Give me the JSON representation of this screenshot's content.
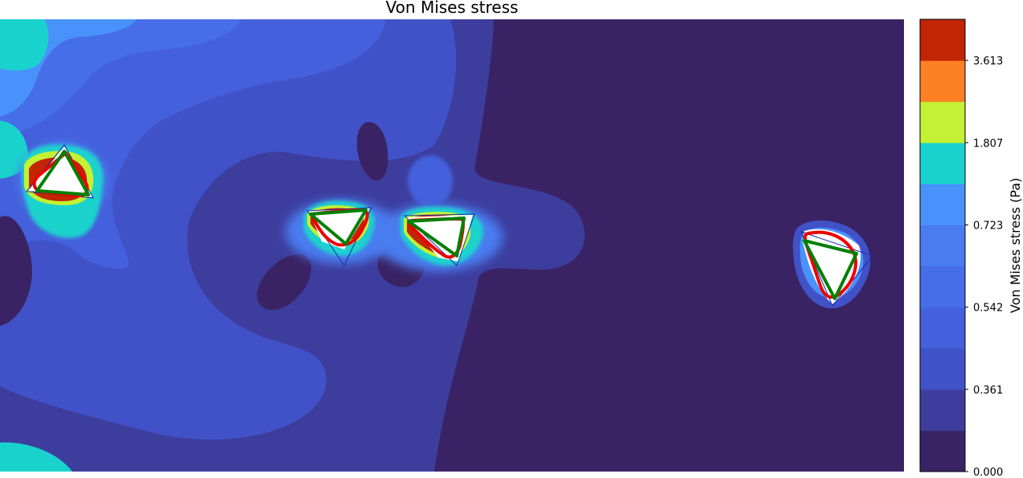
{
  "chart_data": {
    "type": "contour",
    "title": "Von Mises stress",
    "xlabel": "",
    "ylabel": "",
    "colorbar": {
      "label": "Von Mises stress (Pa)",
      "tick_labels": [
        "0.000",
        "0.361",
        "0.542",
        "0.723",
        "1.807",
        "3.613"
      ],
      "levels": 11,
      "colors": [
        "#3a2364",
        "#3d3d9e",
        "#4152c8",
        "#4460dc",
        "#456ee8",
        "#4a7bef",
        "#4992fb",
        "#1ad2cd",
        "#c3f133",
        "#fd8024",
        "#c12503"
      ]
    },
    "grid": false,
    "legend": "none",
    "outline_colors": {
      "target": "#008000",
      "deformed": "#ee0000"
    }
  }
}
